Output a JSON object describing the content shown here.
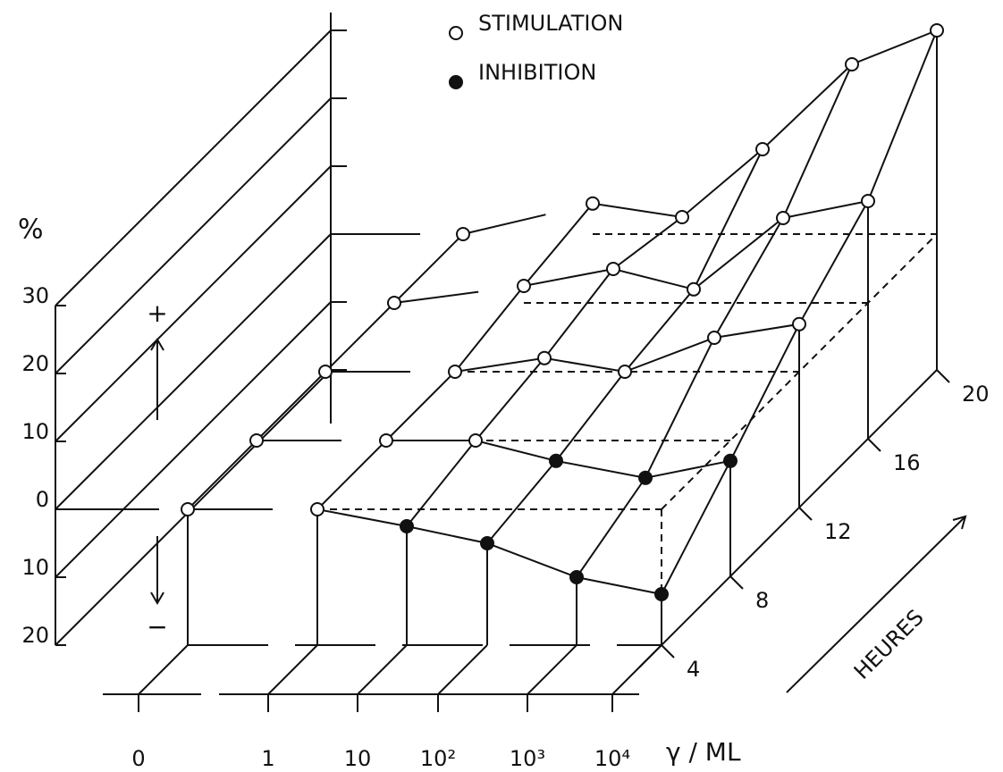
{
  "chart_data": {
    "type": "surface3d",
    "y_label": "%",
    "x_label": "γ / ML",
    "z_label": "HEURES",
    "plus_label": "+",
    "minus_label": "−",
    "legend": [
      {
        "label": "STIMULATION",
        "marker": "open"
      },
      {
        "label": "INHIBITION",
        "marker": "filled"
      }
    ],
    "categories": [
      "0",
      "1",
      "10",
      "10²",
      "10³",
      "10⁴"
    ],
    "zticks": [
      4,
      8,
      12,
      16,
      20
    ],
    "ylim": [
      -20,
      30
    ],
    "yticks": [
      30,
      20,
      10,
      0,
      {
        "value": -10,
        "label": "10"
      },
      {
        "value": -20,
        "label": "20"
      }
    ],
    "series": [
      {
        "values": [
          0,
          0,
          -2.5,
          -5,
          -10,
          -12.5
        ]
      },
      {
        "values": [
          0,
          0,
          0,
          -3,
          -5.5,
          -3
        ]
      },
      {
        "values": [
          0,
          0,
          2,
          0,
          5,
          7
        ]
      },
      {
        "values": [
          0,
          2.5,
          5,
          2,
          12.5,
          15
        ]
      },
      {
        "values": [
          0,
          4.5,
          2.5,
          12.5,
          25,
          30
        ]
      }
    ]
  }
}
